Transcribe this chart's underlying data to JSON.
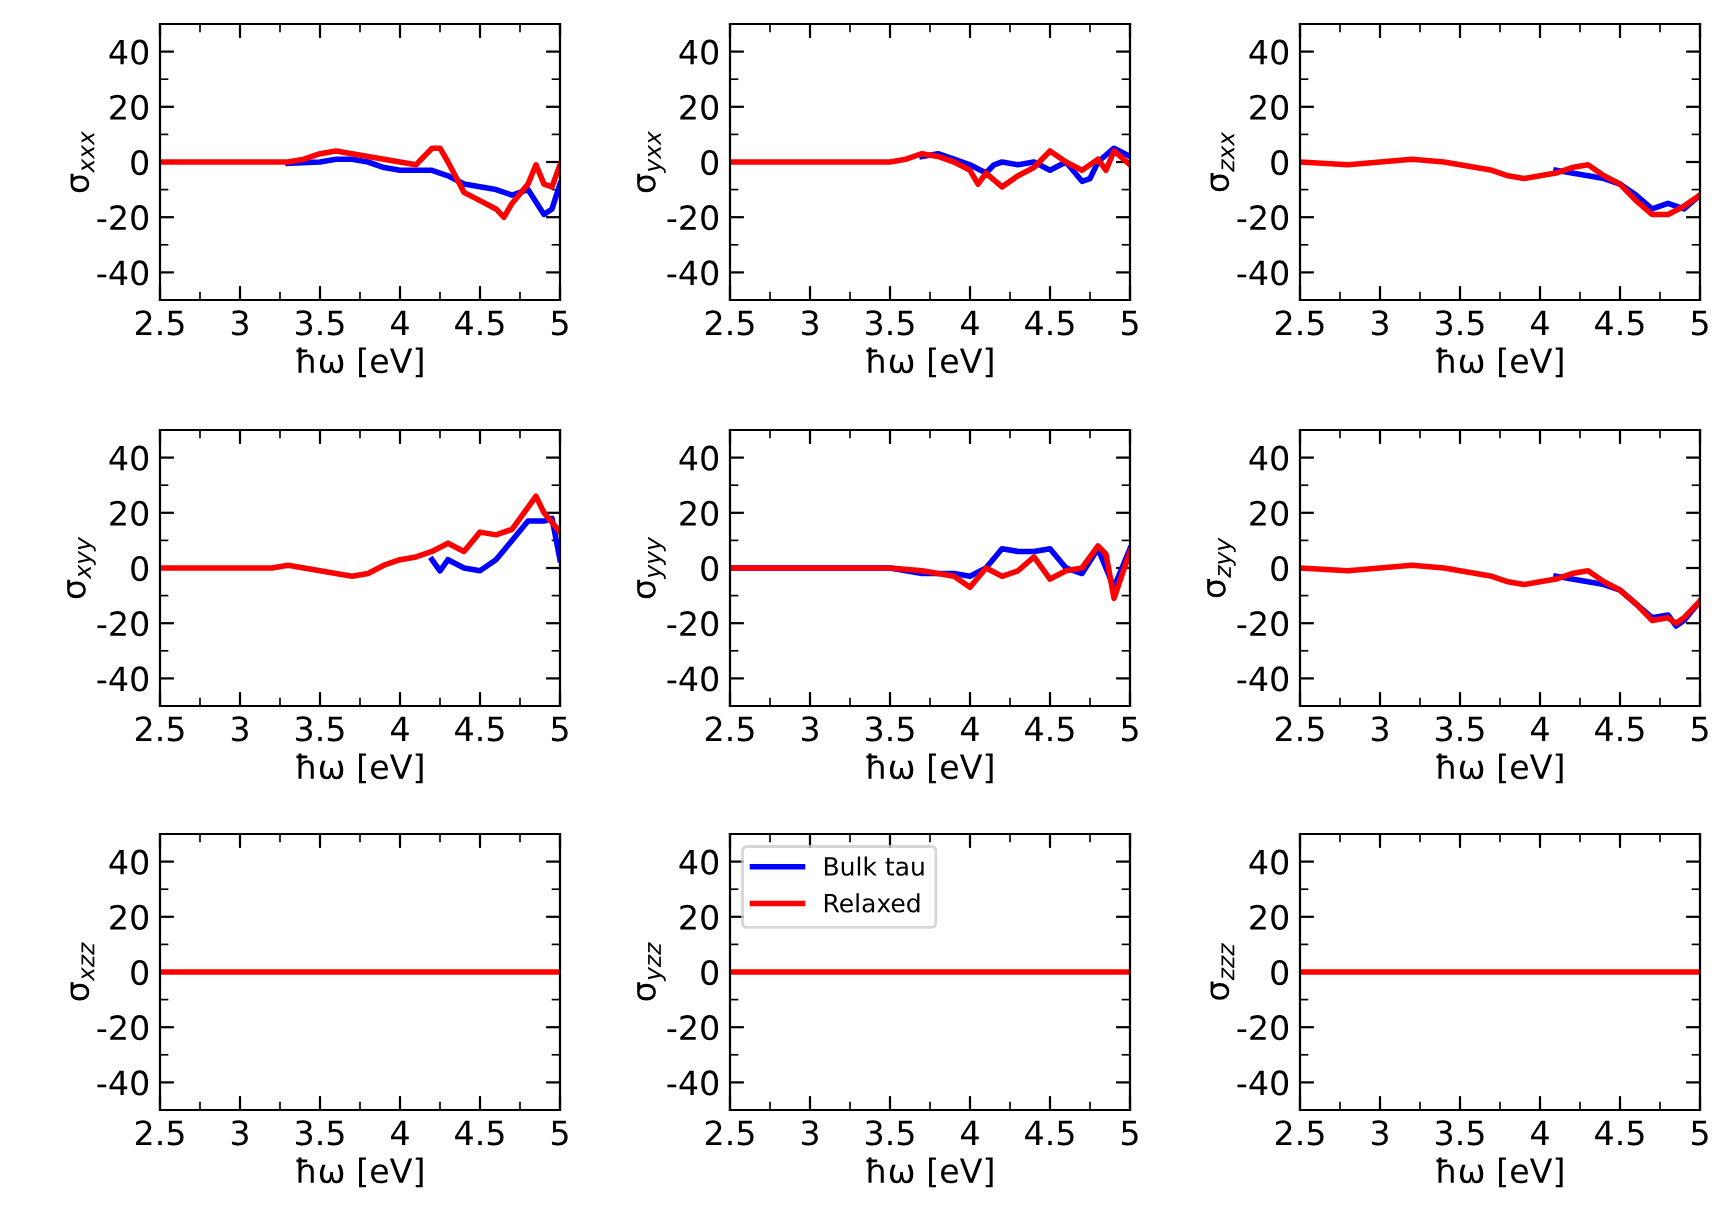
{
  "chart_data": [
    {
      "type": "line",
      "ylabel": "σ$_{xxx}$",
      "xlabel": "ħω [eV]",
      "xlim": [
        2.5,
        5
      ],
      "xticks": [
        2.5,
        3,
        3.5,
        4,
        4.5,
        5
      ],
      "ylim": [
        -50,
        50
      ],
      "yticks": [
        -40,
        -20,
        0,
        20,
        40
      ],
      "series": [
        {
          "color": "#0000ff",
          "x": [
            3.3,
            3.5,
            3.6,
            3.7,
            3.8,
            3.9,
            4.0,
            4.1,
            4.2,
            4.3,
            4.4,
            4.5,
            4.6,
            4.7,
            4.8,
            4.9,
            4.95,
            5.0
          ],
          "values": [
            -0.5,
            0,
            1,
            1,
            0,
            -2,
            -3,
            -3,
            -3,
            -5,
            -8,
            -9,
            -10,
            -12,
            -10,
            -19,
            -17,
            -8
          ]
        },
        {
          "color": "#ff0000",
          "x": [
            2.5,
            2.8,
            3.0,
            3.2,
            3.3,
            3.4,
            3.5,
            3.6,
            3.7,
            3.8,
            3.9,
            4.0,
            4.1,
            4.2,
            4.25,
            4.3,
            4.4,
            4.5,
            4.6,
            4.65,
            4.7,
            4.8,
            4.85,
            4.9,
            4.95,
            5.0
          ],
          "values": [
            0,
            0,
            0,
            0,
            0,
            1,
            3,
            4,
            3,
            2,
            1,
            0,
            -1,
            5,
            5,
            0,
            -11,
            -14,
            -17,
            -20,
            -15,
            -8,
            -1,
            -8,
            -9,
            -1
          ]
        }
      ]
    },
    {
      "type": "line",
      "ylabel": "σ$_{yxx}$",
      "xlabel": "ħω [eV]",
      "xlim": [
        2.5,
        5
      ],
      "xticks": [
        2.5,
        3,
        3.5,
        4,
        4.5,
        5
      ],
      "ylim": [
        -50,
        50
      ],
      "yticks": [
        -40,
        -20,
        0,
        20,
        40
      ],
      "series": [
        {
          "color": "#0000ff",
          "x": [
            3.7,
            3.8,
            3.9,
            4.0,
            4.1,
            4.15,
            4.2,
            4.3,
            4.4,
            4.5,
            4.6,
            4.7,
            4.75,
            4.8,
            4.9,
            5.0
          ],
          "values": [
            2,
            3,
            1,
            -1,
            -4,
            -1,
            0,
            -1,
            0,
            -3,
            0,
            -7,
            -6,
            0,
            5,
            2
          ]
        },
        {
          "color": "#ff0000",
          "x": [
            2.5,
            3.0,
            3.5,
            3.6,
            3.7,
            3.8,
            3.9,
            4.0,
            4.05,
            4.1,
            4.2,
            4.3,
            4.4,
            4.5,
            4.6,
            4.7,
            4.8,
            4.85,
            4.9,
            5.0
          ],
          "values": [
            0,
            0,
            0,
            1,
            3,
            2,
            0,
            -3,
            -8,
            -4,
            -9,
            -5,
            -2,
            4,
            0,
            -3,
            1,
            -3,
            4,
            -1
          ]
        }
      ]
    },
    {
      "type": "line",
      "ylabel": "σ$_{zxx}$",
      "xlabel": "ħω [eV]",
      "xlim": [
        2.5,
        5
      ],
      "xticks": [
        2.5,
        3,
        3.5,
        4,
        4.5,
        5
      ],
      "ylim": [
        -50,
        50
      ],
      "yticks": [
        -40,
        -20,
        0,
        20,
        40
      ],
      "series": [
        {
          "color": "#0000ff",
          "x": [
            4.1,
            4.2,
            4.3,
            4.4,
            4.5,
            4.6,
            4.7,
            4.8,
            4.9,
            5.0
          ],
          "values": [
            -3,
            -4,
            -5,
            -6,
            -8,
            -12,
            -17,
            -15,
            -17,
            -12
          ]
        },
        {
          "color": "#ff0000",
          "x": [
            2.5,
            2.8,
            3.0,
            3.2,
            3.4,
            3.5,
            3.7,
            3.8,
            3.9,
            4.0,
            4.1,
            4.2,
            4.3,
            4.4,
            4.5,
            4.6,
            4.7,
            4.8,
            4.9,
            5.0
          ],
          "values": [
            0,
            -1,
            0,
            1,
            0,
            -1,
            -3,
            -5,
            -6,
            -5,
            -4,
            -2,
            -1,
            -5,
            -8,
            -14,
            -19,
            -19,
            -16,
            -12
          ]
        }
      ]
    },
    {
      "type": "line",
      "ylabel": "σ$_{xyy}$",
      "xlabel": "ħω [eV]",
      "xlim": [
        2.5,
        5
      ],
      "xticks": [
        2.5,
        3,
        3.5,
        4,
        4.5,
        5
      ],
      "ylim": [
        -50,
        50
      ],
      "yticks": [
        -40,
        -20,
        0,
        20,
        40
      ],
      "series": [
        {
          "color": "#0000ff",
          "x": [
            4.2,
            4.25,
            4.3,
            4.4,
            4.5,
            4.6,
            4.7,
            4.8,
            4.9,
            4.95,
            5.0
          ],
          "values": [
            3,
            -1,
            3,
            0,
            -1,
            3,
            10,
            17,
            17,
            18,
            3
          ]
        },
        {
          "color": "#ff0000",
          "x": [
            2.5,
            3.0,
            3.2,
            3.3,
            3.5,
            3.7,
            3.8,
            3.9,
            4.0,
            4.1,
            4.2,
            4.3,
            4.4,
            4.5,
            4.6,
            4.7,
            4.8,
            4.85,
            4.9,
            5.0
          ],
          "values": [
            0,
            0,
            0,
            1,
            -1,
            -3,
            -2,
            1,
            3,
            4,
            6,
            9,
            6,
            13,
            12,
            14,
            22,
            26,
            20,
            13
          ]
        }
      ]
    },
    {
      "type": "line",
      "ylabel": "σ$_{yyy}$",
      "xlabel": "ħω [eV]",
      "xlim": [
        2.5,
        5
      ],
      "xticks": [
        2.5,
        3,
        3.5,
        4,
        4.5,
        5
      ],
      "ylim": [
        -50,
        50
      ],
      "yticks": [
        -40,
        -20,
        0,
        20,
        40
      ],
      "series": [
        {
          "color": "#0000ff",
          "x": [
            2.5,
            3.0,
            3.5,
            3.7,
            3.9,
            4.0,
            4.1,
            4.2,
            4.3,
            4.4,
            4.5,
            4.6,
            4.7,
            4.8,
            4.9,
            5.0
          ],
          "values": [
            0,
            0,
            0,
            -2,
            -2,
            -3,
            0,
            7,
            6,
            6,
            7,
            0,
            -2,
            7,
            -7,
            7
          ]
        },
        {
          "color": "#ff0000",
          "x": [
            2.5,
            3.0,
            3.5,
            3.7,
            3.9,
            4.0,
            4.1,
            4.2,
            4.3,
            4.4,
            4.5,
            4.6,
            4.7,
            4.8,
            4.85,
            4.9,
            5.0
          ],
          "values": [
            0,
            0,
            0,
            -1,
            -3,
            -7,
            0,
            -3,
            -1,
            4,
            -4,
            -1,
            0,
            8,
            5,
            -11,
            6
          ]
        }
      ]
    },
    {
      "type": "line",
      "ylabel": "σ$_{zyy}$",
      "xlabel": "ħω [eV]",
      "xlim": [
        2.5,
        5
      ],
      "xticks": [
        2.5,
        3,
        3.5,
        4,
        4.5,
        5
      ],
      "ylim": [
        -50,
        50
      ],
      "yticks": [
        -40,
        -20,
        0,
        20,
        40
      ],
      "series": [
        {
          "color": "#0000ff",
          "x": [
            4.1,
            4.2,
            4.3,
            4.4,
            4.5,
            4.6,
            4.7,
            4.8,
            4.85,
            4.9,
            5.0
          ],
          "values": [
            -3,
            -4,
            -5,
            -6,
            -8,
            -13,
            -18,
            -17,
            -21,
            -19,
            -12
          ]
        },
        {
          "color": "#ff0000",
          "x": [
            2.5,
            2.8,
            3.0,
            3.2,
            3.4,
            3.5,
            3.7,
            3.8,
            3.9,
            4.0,
            4.1,
            4.2,
            4.3,
            4.4,
            4.5,
            4.6,
            4.7,
            4.8,
            4.85,
            4.9,
            5.0
          ],
          "values": [
            0,
            -1,
            0,
            1,
            0,
            -1,
            -3,
            -5,
            -6,
            -5,
            -4,
            -2,
            -1,
            -5,
            -8,
            -13,
            -19,
            -18,
            -20,
            -18,
            -12
          ]
        }
      ]
    },
    {
      "type": "line",
      "ylabel": "σ$_{xzz}$",
      "xlabel": "ħω [eV]",
      "xlim": [
        2.5,
        5
      ],
      "xticks": [
        2.5,
        3,
        3.5,
        4,
        4.5,
        5
      ],
      "ylim": [
        -50,
        50
      ],
      "yticks": [
        -40,
        -20,
        0,
        20,
        40
      ],
      "series": [
        {
          "color": "#ff0000",
          "x": [
            2.5,
            5.0
          ],
          "values": [
            0,
            0
          ]
        }
      ]
    },
    {
      "type": "line",
      "ylabel": "σ$_{yzz}$",
      "xlabel": "ħω [eV]",
      "xlim": [
        2.5,
        5
      ],
      "xticks": [
        2.5,
        3,
        3.5,
        4,
        4.5,
        5
      ],
      "ylim": [
        -50,
        50
      ],
      "yticks": [
        -40,
        -20,
        0,
        20,
        40
      ],
      "legend": "top left",
      "series": [
        {
          "name": "Bulk tau",
          "color": "#0000ff"
        },
        {
          "name": "Relaxed",
          "color": "#ff0000",
          "x": [
            2.5,
            5.0
          ],
          "values": [
            0,
            0
          ]
        }
      ]
    },
    {
      "type": "line",
      "ylabel": "σ$_{zzz}$",
      "xlabel": "ħω [eV]",
      "xlim": [
        2.5,
        5
      ],
      "xticks": [
        2.5,
        3,
        3.5,
        4,
        4.5,
        5
      ],
      "ylim": [
        -50,
        50
      ],
      "yticks": [
        -40,
        -20,
        0,
        20,
        40
      ],
      "series": [
        {
          "color": "#ff0000",
          "x": [
            2.5,
            5.0
          ],
          "values": [
            0,
            0
          ]
        }
      ]
    }
  ]
}
